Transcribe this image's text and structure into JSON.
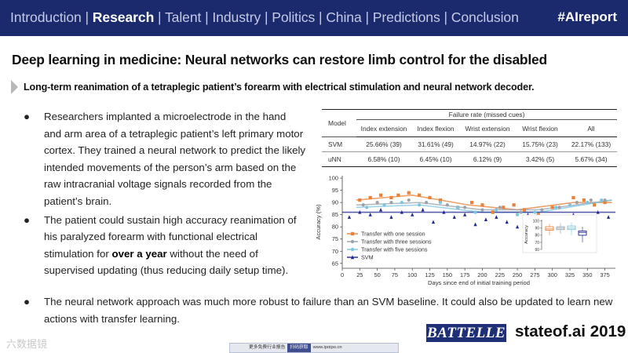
{
  "nav": {
    "items": [
      {
        "label": "Introduction",
        "active": false
      },
      {
        "label": "Research",
        "active": true
      },
      {
        "label": "Talent",
        "active": false
      },
      {
        "label": "Industry",
        "active": false
      },
      {
        "label": "Politics",
        "active": false
      },
      {
        "label": "China",
        "active": false
      },
      {
        "label": "Predictions",
        "active": false
      },
      {
        "label": "Conclusion",
        "active": false
      }
    ],
    "separator": "|",
    "hashtag": "#AIreport"
  },
  "title": "Deep learning in medicine: Neural networks can restore limb control for the disabled",
  "subtitle": "Long-term reanimation of a tetraplegic patient’s forearm with electrical stimulation and neural network decoder.",
  "bullet_symbol": "●",
  "bullets": [
    {
      "text": "Researchers implanted a microelectrode in the hand and arm area of a tetraplegic patient’s left primary motor cortex. They trained a neural network to predict the likely intended movements of the person’s arm based on the raw intracranial voltage signals recorded from the patient’s brain."
    },
    {
      "before": "The patient could sustain high accuracy reanimation of his paralyzed forearm with functional electrical stimulation for ",
      "bold": "over a year",
      "after": " without the need of supervised updating (thus reducing daily setup time)."
    },
    {
      "text": "The neural network approach was much more robust to failure than an SVM baseline. It could also be updated to learn new actions with transfer learning."
    }
  ],
  "table": {
    "group_header": "Failure rate (missed cues)",
    "model_header": "Model",
    "columns": [
      "Index extension",
      "Index flexion",
      "Wrist extension",
      "Wrist flexion",
      "All"
    ],
    "rows": [
      {
        "model": "SVM",
        "values": [
          "25.66% (39)",
          "31.61% (49)",
          "14.97% (22)",
          "15.75% (23)",
          "22.17% (133)"
        ]
      },
      {
        "model": "uNN",
        "values": [
          "6.58% (10)",
          "6.45% (10)",
          "6.12% (9)",
          "3.42% (5)",
          "5.67% (34)"
        ]
      }
    ]
  },
  "chart_data": {
    "type": "scatter",
    "xlabel": "Days since end of initial training period",
    "ylabel": "Accuracy (%)",
    "xlim": [
      0,
      390
    ],
    "ylim": [
      63,
      101
    ],
    "xticks": [
      0,
      25,
      50,
      75,
      100,
      125,
      150,
      175,
      200,
      225,
      250,
      275,
      300,
      325,
      350,
      375
    ],
    "yticks": [
      65,
      70,
      75,
      80,
      85,
      90,
      95,
      100
    ],
    "legend_position": "inside-bottom-left",
    "series": [
      {
        "name": "Transfer with one session",
        "color": "#e8823a",
        "marker": "square",
        "x": [
          25,
          40,
          55,
          70,
          80,
          95,
          110,
          125,
          140,
          165,
          185,
          200,
          215,
          230,
          245,
          260,
          280,
          300,
          330,
          345,
          360,
          375
        ],
        "y": [
          91,
          92,
          93,
          92,
          93,
          94,
          93,
          92,
          91,
          88,
          90,
          89,
          86,
          88,
          89,
          87,
          85,
          88,
          92,
          91,
          89,
          90
        ],
        "trend": [
          [
            20,
            91
          ],
          [
            100,
            93
          ],
          [
            180,
            89
          ],
          [
            250,
            87
          ],
          [
            330,
            90
          ],
          [
            385,
            90
          ]
        ]
      },
      {
        "name": "Transfer with three sessions",
        "color": "#9aa3ab",
        "marker": "circle",
        "x": [
          30,
          50,
          70,
          95,
          120,
          150,
          175,
          200,
          225,
          255,
          285,
          310,
          335,
          355,
          375
        ],
        "y": [
          89,
          90,
          90,
          91,
          90,
          89,
          88,
          87,
          88,
          86,
          87,
          88,
          90,
          91,
          91
        ],
        "trend": [
          [
            20,
            89
          ],
          [
            110,
            90
          ],
          [
            200,
            87
          ],
          [
            280,
            87
          ],
          [
            385,
            91
          ]
        ]
      },
      {
        "name": "Transfer with five sessions",
        "color": "#7cc4e0",
        "marker": "circle",
        "x": [
          35,
          60,
          85,
          110,
          140,
          165,
          190,
          220,
          250,
          275,
          305,
          325,
          350,
          370
        ],
        "y": [
          88,
          89,
          90,
          89,
          90,
          88,
          86,
          87,
          85,
          86,
          88,
          89,
          90,
          91
        ],
        "trend": [
          [
            20,
            88
          ],
          [
            110,
            89
          ],
          [
            200,
            86
          ],
          [
            280,
            86
          ],
          [
            385,
            91
          ]
        ]
      },
      {
        "name": "SVM",
        "color": "#232a8e",
        "marker": "triangle",
        "x": [
          10,
          25,
          40,
          55,
          70,
          85,
          100,
          115,
          130,
          145,
          160,
          175,
          190,
          205,
          220,
          235,
          250,
          265,
          280,
          295,
          310,
          330,
          350,
          365,
          380
        ],
        "y": [
          84,
          86,
          85,
          87,
          84,
          86,
          85,
          87,
          82,
          86,
          84,
          85,
          81,
          83,
          84,
          82,
          80,
          85,
          83,
          82,
          84,
          85,
          82,
          86,
          84
        ],
        "trend": [
          [
            0,
            86
          ],
          [
            130,
            86
          ],
          [
            390,
            86
          ]
        ]
      }
    ],
    "inset": {
      "type": "box",
      "ylabel": "Accuracy",
      "yticks": [
        60,
        70,
        80,
        90,
        100
      ],
      "ylim": [
        60,
        102
      ],
      "boxes": [
        {
          "color": "#e8823a",
          "q1": 87,
          "median": 89,
          "q3": 92,
          "whisker_low": 80,
          "whisker_high": 96
        },
        {
          "color": "#9aa3ab",
          "q1": 88,
          "median": 90,
          "q3": 92,
          "whisker_low": 82,
          "whisker_high": 97
        },
        {
          "color": "#7cc4e0",
          "q1": 88,
          "median": 90,
          "q3": 93,
          "whisker_low": 80,
          "whisker_high": 98
        },
        {
          "color": "#232a8e",
          "q1": 80,
          "median": 84,
          "q3": 86,
          "whisker_low": 70,
          "whisker_high": 92
        }
      ]
    }
  },
  "footer": {
    "watermark": "六数据镜",
    "qr_before": "更多免费行业报告",
    "qr_button": "扫码获取",
    "qr_after": "www.ipoipo.cn",
    "brand": "BATTELLE",
    "site": "stateof.ai 2019"
  },
  "colors": {
    "nav_bg": "#1a2a6c",
    "brand_bg": "#1e2f75"
  }
}
